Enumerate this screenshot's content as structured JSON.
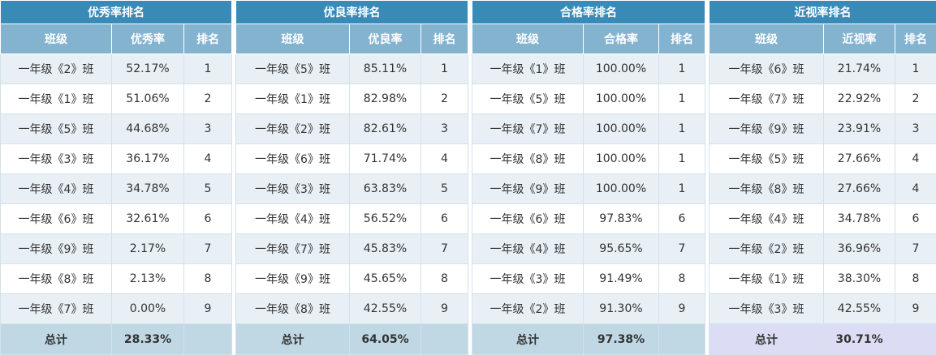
{
  "tables": [
    {
      "title": "优秀率排名",
      "headers": [
        "班级",
        "优秀率",
        "排名"
      ],
      "rows": [
        [
          "一年级《2》班",
          "52.17%",
          "1"
        ],
        [
          "一年级《1》班",
          "51.06%",
          "2"
        ],
        [
          "一年级《5》班",
          "44.68%",
          "3"
        ],
        [
          "一年级《3》班",
          "36.17%",
          "4"
        ],
        [
          "一年级《4》班",
          "34.78%",
          "5"
        ],
        [
          "一年级《6》班",
          "32.61%",
          "6"
        ],
        [
          "一年级《9》班",
          "2.17%",
          "7"
        ],
        [
          "一年级《8》班",
          "2.13%",
          "8"
        ],
        [
          "一年级《7》班",
          "0.00%",
          "9"
        ]
      ],
      "total": [
        "总计",
        "28.33%",
        ""
      ]
    },
    {
      "title": "优良率排名",
      "headers": [
        "班级",
        "优良率",
        "排名"
      ],
      "rows": [
        [
          "一年级《5》班",
          "85.11%",
          "1"
        ],
        [
          "一年级《1》班",
          "82.98%",
          "2"
        ],
        [
          "一年级《2》班",
          "82.61%",
          "3"
        ],
        [
          "一年级《6》班",
          "71.74%",
          "4"
        ],
        [
          "一年级《3》班",
          "63.83%",
          "5"
        ],
        [
          "一年级《4》班",
          "56.52%",
          "6"
        ],
        [
          "一年级《7》班",
          "45.83%",
          "7"
        ],
        [
          "一年级《9》班",
          "45.65%",
          "8"
        ],
        [
          "一年级《8》班",
          "42.55%",
          "9"
        ]
      ],
      "total": [
        "总计",
        "64.05%",
        ""
      ]
    },
    {
      "title": "合格率排名",
      "headers": [
        "班级",
        "合格率",
        "排名"
      ],
      "rows": [
        [
          "一年级《1》班",
          "100.00%",
          "1"
        ],
        [
          "一年级《5》班",
          "100.00%",
          "1"
        ],
        [
          "一年级《7》班",
          "100.00%",
          "1"
        ],
        [
          "一年级《8》班",
          "100.00%",
          "1"
        ],
        [
          "一年级《9》班",
          "100.00%",
          "1"
        ],
        [
          "一年级《6》班",
          "97.83%",
          "6"
        ],
        [
          "一年级《4》班",
          "95.65%",
          "7"
        ],
        [
          "一年级《3》班",
          "91.49%",
          "8"
        ],
        [
          "一年级《2》班",
          "91.30%",
          "9"
        ]
      ],
      "total": [
        "总计",
        "97.38%",
        ""
      ]
    },
    {
      "title": "近视率排名",
      "headers": [
        "班级",
        "近视率",
        "排名"
      ],
      "rows": [
        [
          "一年级《6》班",
          "21.74%",
          "1"
        ],
        [
          "一年级《7》班",
          "22.92%",
          "2"
        ],
        [
          "一年级《9》班",
          "23.91%",
          "3"
        ],
        [
          "一年级《5》班",
          "27.66%",
          "4"
        ],
        [
          "一年级《8》班",
          "27.66%",
          "4"
        ],
        [
          "一年级《4》班",
          "34.78%",
          "6"
        ],
        [
          "一年级《2》班",
          "36.96%",
          "7"
        ],
        [
          "一年级《1》班",
          "38.30%",
          "8"
        ],
        [
          "一年级《3》班",
          "42.55%",
          "9"
        ]
      ],
      "total": [
        "总计",
        "30.71%",
        ""
      ]
    }
  ],
  "colors": {
    "title_bg": "#3a8ab8",
    "header_bg": "#84b3d0",
    "row_odd_bg": "#e8f0f6",
    "row_even_bg": "#ffffff",
    "total_bg": "#c0d8e4",
    "total_alt_bg": "#dcdcf5"
  }
}
